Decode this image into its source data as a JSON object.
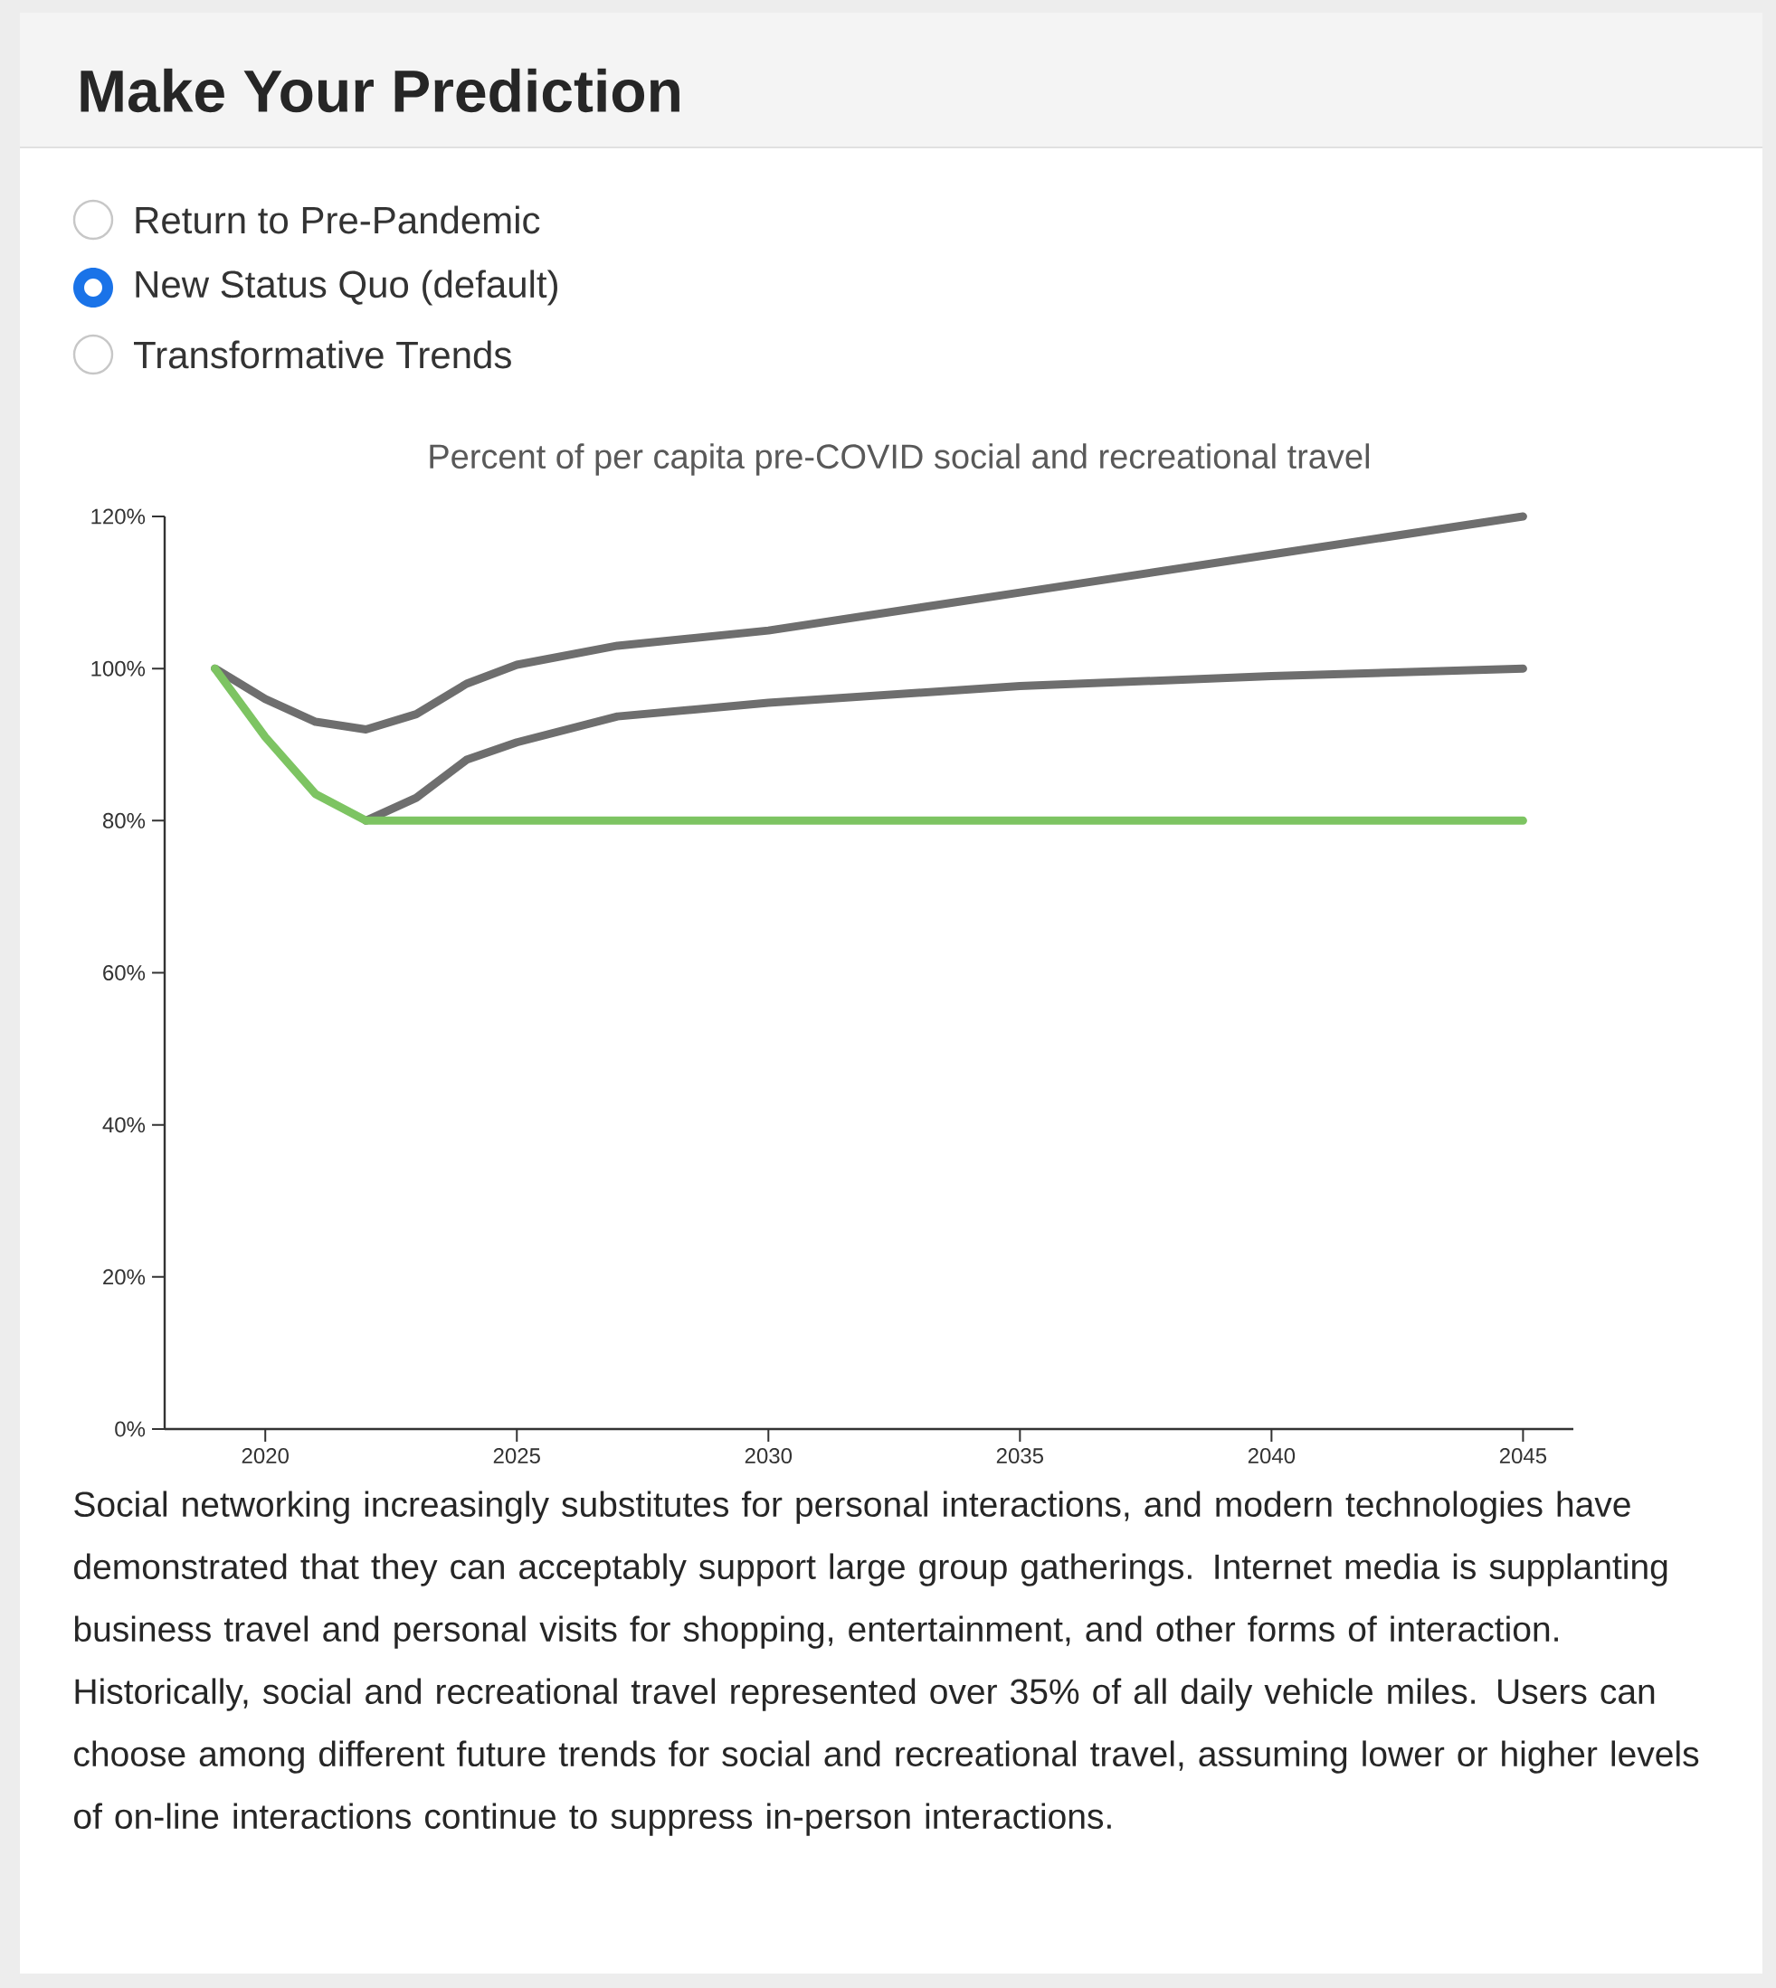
{
  "chart_data": {
    "type": "line",
    "title": "Make Your Prediction",
    "subtitle": "Percent of per capita pre-COVID social and recreational travel",
    "annotations": [
      "Return to Pre-Pandemic",
      "New Status Quo (default)",
      "Transformative Trends",
      "Social networking increasingly substitutes for personal interactions, and modern technologies have demonstrated that they can acceptably support large group gatherings. Internet media is supplanting business travel and personal visits for shopping, entertainment, and other forms of interaction. Historically, social and recreational travel represented over 35% of all daily vehicle miles. Users can choose among different future trends for social and recreational travel, assuming lower or higher levels of on-line interactions continue to suppress in-person interactions."
    ],
    "series": [
      {
        "color": "#6e6e6e",
        "x": [
          2019,
          2020,
          2021,
          2022,
          2023,
          2024,
          2025,
          2027,
          2030,
          2035,
          2040,
          2045
        ],
        "values": [
          100,
          96,
          93,
          92,
          94,
          98,
          100.5,
          103,
          105,
          110,
          115,
          120
        ]
      },
      {
        "color": "#6e6e6e",
        "x": [
          2022,
          2023,
          2024,
          2025,
          2027,
          2030,
          2035,
          2040,
          2045
        ],
        "values": [
          80,
          83,
          88,
          90.3,
          93.7,
          95.5,
          97.7,
          99,
          100
        ]
      },
      {
        "color": "#7dc462",
        "x": [
          2019,
          2020,
          2021,
          2022,
          2030,
          2045
        ],
        "values": [
          100,
          91,
          83.5,
          80,
          80,
          80
        ]
      }
    ],
    "xlim": [
      2018,
      2046
    ],
    "ylim": [
      0,
      120
    ],
    "xticks": [
      2020,
      2025,
      2030,
      2035,
      2040,
      2045
    ],
    "yticks": [
      {
        "value": 0,
        "label": "0%"
      },
      {
        "value": 20,
        "label": "20%"
      },
      {
        "value": 40,
        "label": "40%"
      },
      {
        "value": 60,
        "label": "60%"
      },
      {
        "value": 80,
        "label": "80%"
      },
      {
        "value": 100,
        "label": "100%"
      },
      {
        "value": 120,
        "label": "120%"
      }
    ],
    "marker": "none",
    "line_style": "solid"
  }
}
